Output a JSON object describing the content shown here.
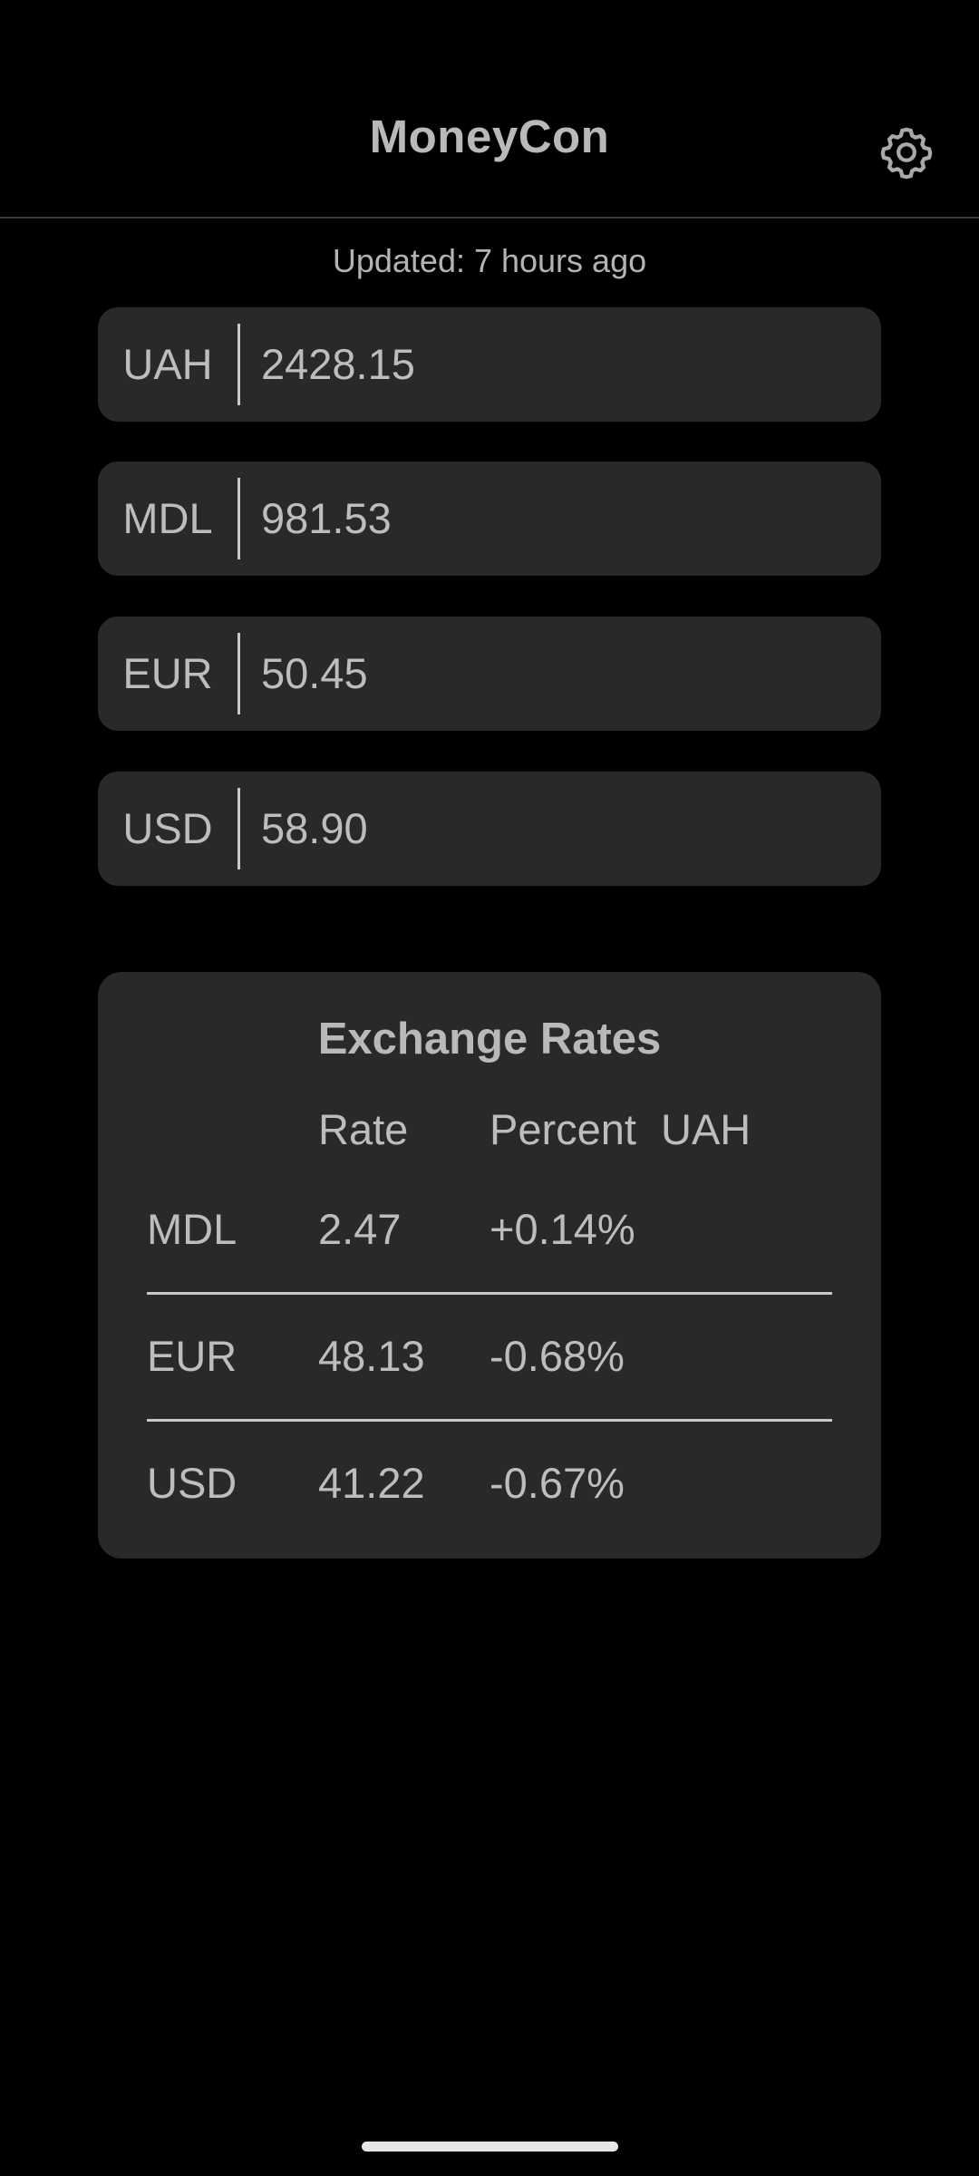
{
  "app": {
    "title": "MoneyCon",
    "settings_icon": "gear-icon"
  },
  "status": {
    "updated": "Updated: 7 hours ago"
  },
  "currencies": [
    {
      "code": "UAH",
      "value": "2428.15"
    },
    {
      "code": "MDL",
      "value": "981.53"
    },
    {
      "code": "EUR",
      "value": "50.45"
    },
    {
      "code": "USD",
      "value": "58.90"
    }
  ],
  "rates": {
    "title": "Exchange Rates",
    "headers": {
      "rate": "Rate",
      "percent": "Percent",
      "base": "UAH"
    },
    "rows": [
      {
        "code": "MDL",
        "rate": "2.47",
        "percent": "+0.14%"
      },
      {
        "code": "EUR",
        "rate": "48.13",
        "percent": "-0.68%"
      },
      {
        "code": "USD",
        "rate": "41.22",
        "percent": "-0.67%"
      }
    ]
  },
  "colors": {
    "background": "#000000",
    "card": "#29282a",
    "text": "#bdbdbd"
  }
}
